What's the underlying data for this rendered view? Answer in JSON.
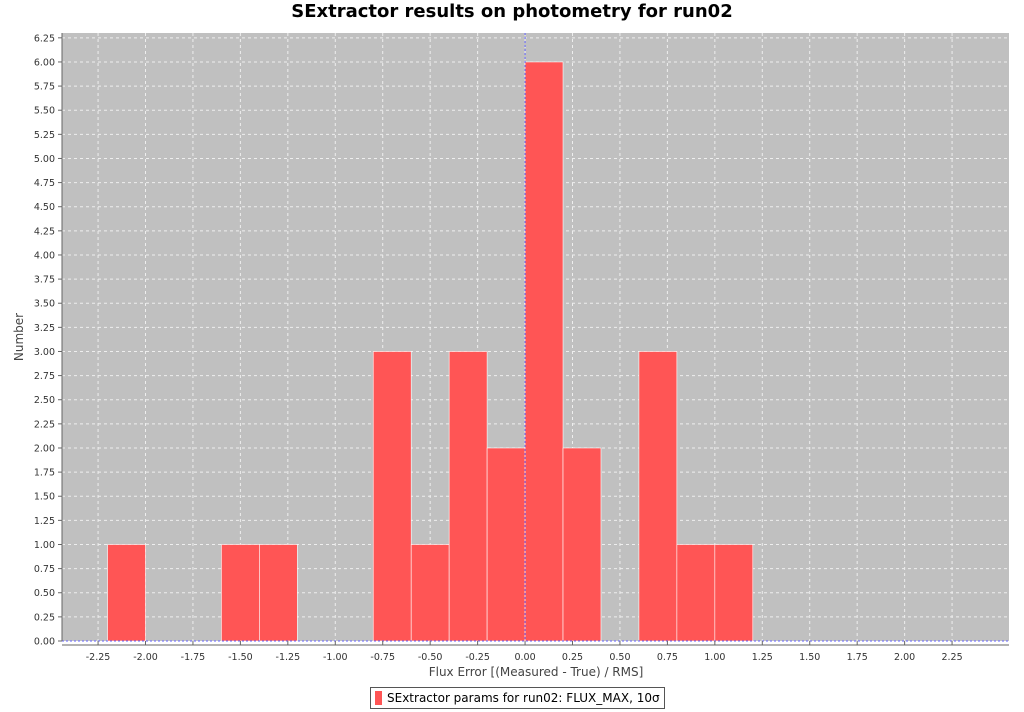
{
  "chart_data": {
    "type": "bar",
    "title": "SExtractor results on photometry for run02",
    "xlabel": "Flux Error [(Measured - True) / RMS]",
    "ylabel": "Number",
    "xlim": [
      -2.44,
      2.55
    ],
    "ylim": [
      0,
      6.3
    ],
    "x_ticks": [
      "-2.25",
      "-2.00",
      "-1.75",
      "-1.50",
      "-1.25",
      "-1.00",
      "-0.75",
      "-0.50",
      "-0.25",
      "0.00",
      "0.25",
      "0.50",
      "0.75",
      "1.00",
      "1.25",
      "1.50",
      "1.75",
      "2.00",
      "2.25"
    ],
    "y_ticks": [
      "0.00",
      "0.25",
      "0.50",
      "0.75",
      "1.00",
      "1.25",
      "1.50",
      "1.75",
      "2.00",
      "2.25",
      "2.50",
      "2.75",
      "3.00",
      "3.25",
      "3.50",
      "3.75",
      "4.00",
      "4.25",
      "4.50",
      "4.75",
      "5.00",
      "5.25",
      "5.50",
      "5.75",
      "6.00",
      "6.25"
    ],
    "bin_width": 0.2,
    "bins": [
      {
        "start": -2.2,
        "value": 1
      },
      {
        "start": -1.6,
        "value": 1
      },
      {
        "start": -1.4,
        "value": 1
      },
      {
        "start": -0.8,
        "value": 3
      },
      {
        "start": -0.6,
        "value": 1
      },
      {
        "start": -0.4,
        "value": 3
      },
      {
        "start": -0.2,
        "value": 2
      },
      {
        "start": 0.0,
        "value": 6
      },
      {
        "start": 0.2,
        "value": 2
      },
      {
        "start": 0.6,
        "value": 3
      },
      {
        "start": 0.8,
        "value": 1
      },
      {
        "start": 1.0,
        "value": 1
      }
    ],
    "series": [
      {
        "name": "SExtractor params for run02: FLUX_MAX, 10σ",
        "color": "#ff5555"
      }
    ],
    "grid": true,
    "legend_position": "bottom-center",
    "colors": {
      "plot_background": "#c0c0c0",
      "grid": "#eeeeee",
      "bar": "#ff5555",
      "zero_line": "#6666ff"
    }
  }
}
